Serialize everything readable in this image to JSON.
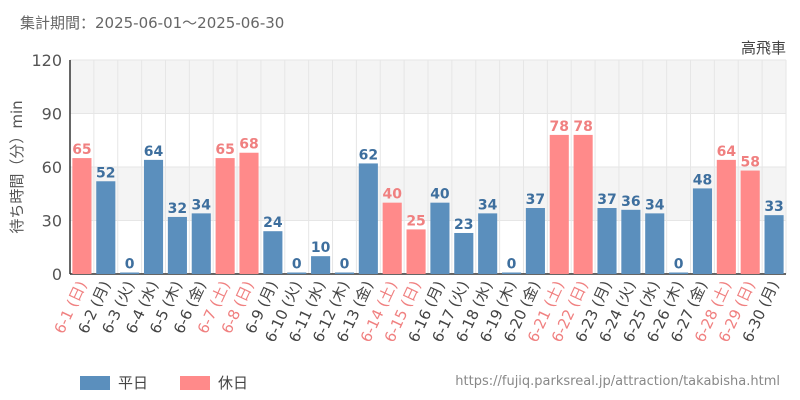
{
  "header": {
    "period": "集計期間：2025-06-01～2025-06-30"
  },
  "legend": {
    "weekday_label": "平日",
    "holiday_label": "休日"
  },
  "source": "https://fujiq.parksreal.jp/attraction/takabisha.html",
  "colors": {
    "weekday": "#5b8fbd",
    "holiday": "#ff8a8a",
    "weekday_text": "#3e6f9e",
    "holiday_text": "#f08080",
    "grid": "#e6e6e6",
    "band": "#f4f4f4"
  },
  "chart_data": {
    "type": "bar",
    "title": "高飛車",
    "ylabel": "待ち時間（分）min",
    "ylim": [
      0,
      120
    ],
    "yticks": [
      0,
      30,
      60,
      90,
      120
    ],
    "categories": [
      "6-1 (日)",
      "6-2 (月)",
      "6-3 (火)",
      "6-4 (水)",
      "6-5 (木)",
      "6-6 (金)",
      "6-7 (土)",
      "6-8 (日)",
      "6-9 (月)",
      "6-10 (火)",
      "6-11 (水)",
      "6-12 (木)",
      "6-13 (金)",
      "6-14 (土)",
      "6-15 (日)",
      "6-16 (月)",
      "6-17 (火)",
      "6-18 (水)",
      "6-19 (木)",
      "6-20 (金)",
      "6-21 (土)",
      "6-22 (日)",
      "6-23 (月)",
      "6-24 (火)",
      "6-25 (水)",
      "6-26 (木)",
      "6-27 (金)",
      "6-28 (土)",
      "6-29 (日)",
      "6-30 (月)"
    ],
    "values": [
      65,
      52,
      0,
      64,
      32,
      34,
      65,
      68,
      24,
      0,
      10,
      0,
      62,
      40,
      25,
      40,
      23,
      34,
      0,
      37,
      78,
      78,
      37,
      36,
      34,
      0,
      48,
      64,
      58,
      33
    ],
    "day_type": [
      "holiday",
      "weekday",
      "weekday",
      "weekday",
      "weekday",
      "weekday",
      "holiday",
      "holiday",
      "weekday",
      "weekday",
      "weekday",
      "weekday",
      "weekday",
      "holiday",
      "holiday",
      "weekday",
      "weekday",
      "weekday",
      "weekday",
      "weekday",
      "holiday",
      "holiday",
      "weekday",
      "weekday",
      "weekday",
      "weekday",
      "weekday",
      "holiday",
      "holiday",
      "weekday"
    ],
    "series": [
      {
        "name": "平日"
      },
      {
        "name": "休日"
      }
    ],
    "grid": true,
    "legend_position": "bottom-left"
  }
}
